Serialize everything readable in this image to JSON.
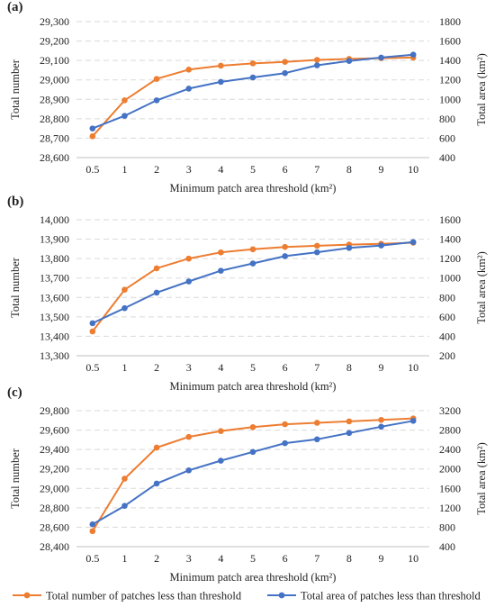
{
  "legend": {
    "items": [
      {
        "label": "Total number of patches less than threshold",
        "color": "#ED7D31"
      },
      {
        "label": "Total area of patches less than threshold",
        "color": "#4472C4"
      }
    ]
  },
  "chart_data": [
    {
      "panel": "(a)",
      "type": "line",
      "x": [
        "0.5",
        "1",
        "2",
        "3",
        "4",
        "5",
        "6",
        "7",
        "8",
        "9",
        "10"
      ],
      "xlabel": "Minimum patch area threshold (km²)",
      "y_left": {
        "label": "Total number",
        "lim": [
          28600,
          29300
        ],
        "ticks": [
          28600,
          28700,
          28800,
          28900,
          29000,
          29100,
          29200,
          29300
        ],
        "tick_labels": [
          "28,600",
          "28,700",
          "28,800",
          "28,900",
          "29,000",
          "29,100",
          "29,200",
          "29,300"
        ]
      },
      "y_right": {
        "label": "Total area (km²)",
        "lim": [
          400,
          1800
        ],
        "ticks": [
          400,
          600,
          800,
          1000,
          1200,
          1400,
          1600,
          1800
        ],
        "tick_labels": [
          "400",
          "600",
          "800",
          "1000",
          "1200",
          "1400",
          "1600",
          "1800"
        ]
      },
      "series": [
        {
          "name": "Total number of patches less than threshold",
          "axis": "left",
          "color": "#ED7D31",
          "values": [
            28710,
            28895,
            29005,
            29053,
            29073,
            29085,
            29093,
            29103,
            29108,
            29112,
            29115
          ]
        },
        {
          "name": "Total area of patches less than threshold",
          "axis": "right",
          "color": "#4472C4",
          "values": [
            700,
            830,
            990,
            1110,
            1180,
            1225,
            1270,
            1350,
            1395,
            1430,
            1460
          ]
        }
      ],
      "grid": "horizontal"
    },
    {
      "panel": "(b)",
      "type": "line",
      "x": [
        "0.5",
        "1",
        "2",
        "3",
        "4",
        "5",
        "6",
        "7",
        "8",
        "9",
        "10"
      ],
      "xlabel": "Minimum patch area threshold (km²)",
      "y_left": {
        "label": "Total number",
        "lim": [
          13300,
          14000
        ],
        "ticks": [
          13300,
          13400,
          13500,
          13600,
          13700,
          13800,
          13900,
          14000
        ],
        "tick_labels": [
          "13,300",
          "13,400",
          "13,500",
          "13,600",
          "13,700",
          "13,800",
          "13,900",
          "14,000"
        ]
      },
      "y_right": {
        "label": "Total area (km²)",
        "lim": [
          200,
          1600
        ],
        "ticks": [
          200,
          400,
          600,
          800,
          1000,
          1200,
          1400,
          1600
        ],
        "tick_labels": [
          "200",
          "400",
          "600",
          "800",
          "1000",
          "1200",
          "1400",
          "1600"
        ]
      },
      "series": [
        {
          "name": "Total number of patches less than threshold",
          "axis": "left",
          "color": "#ED7D31",
          "values": [
            13425,
            13640,
            13750,
            13800,
            13832,
            13848,
            13860,
            13866,
            13872,
            13876,
            13882
          ]
        },
        {
          "name": "Total area of patches less than threshold",
          "axis": "right",
          "color": "#4472C4",
          "values": [
            535,
            690,
            850,
            965,
            1075,
            1150,
            1225,
            1265,
            1310,
            1335,
            1370
          ]
        }
      ],
      "grid": "horizontal"
    },
    {
      "panel": "(c)",
      "type": "line",
      "x": [
        "0.5",
        "1",
        "2",
        "3",
        "4",
        "5",
        "6",
        "7",
        "8",
        "9",
        "10"
      ],
      "xlabel": "Minimum patch area threshold (km²)",
      "y_left": {
        "label": "Total number",
        "lim": [
          28400,
          29800
        ],
        "ticks": [
          28400,
          28600,
          28800,
          29000,
          29200,
          29400,
          29600,
          29800
        ],
        "tick_labels": [
          "28,400",
          "28,600",
          "28,800",
          "29,000",
          "29,200",
          "29,400",
          "29,600",
          "29,800"
        ]
      },
      "y_right": {
        "label": "Total area (km²)",
        "lim": [
          400,
          3200
        ],
        "ticks": [
          400,
          800,
          1200,
          1600,
          2000,
          2400,
          2800,
          3200
        ],
        "tick_labels": [
          "400",
          "800",
          "1200",
          "1600",
          "2000",
          "2400",
          "2800",
          "3200"
        ]
      },
      "series": [
        {
          "name": "Total number of patches less than threshold",
          "axis": "left",
          "color": "#ED7D31",
          "values": [
            28560,
            29100,
            29420,
            29530,
            29590,
            29630,
            29660,
            29675,
            29690,
            29705,
            29720
          ]
        },
        {
          "name": "Total area of patches less than threshold",
          "axis": "right",
          "color": "#4472C4",
          "values": [
            860,
            1240,
            1700,
            1970,
            2170,
            2350,
            2530,
            2610,
            2740,
            2870,
            2990
          ]
        }
      ],
      "grid": "horizontal"
    }
  ]
}
